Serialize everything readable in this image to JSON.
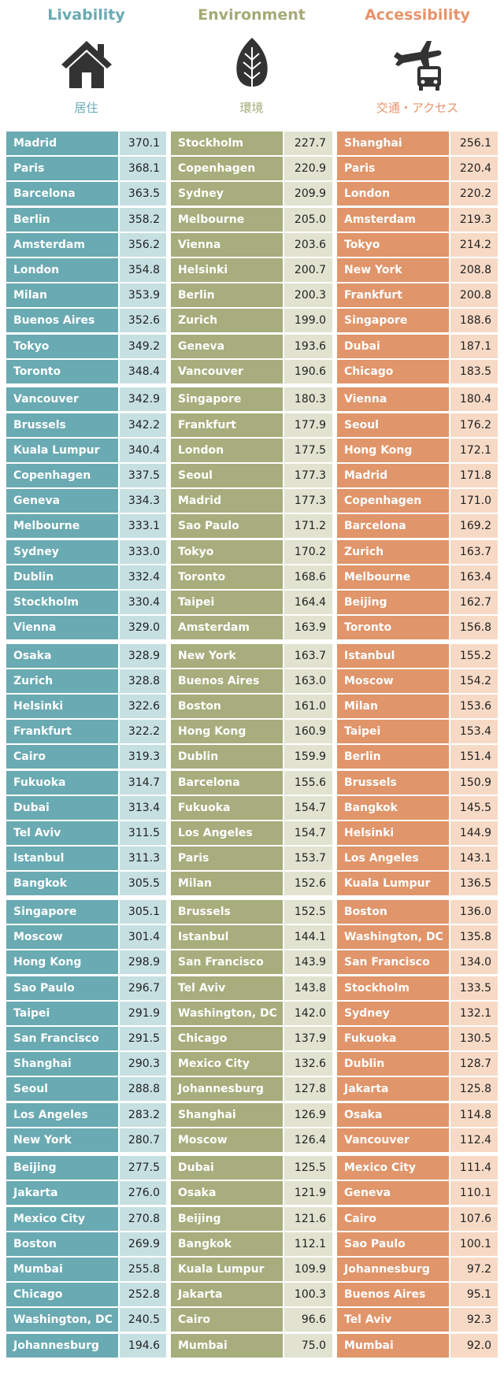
{
  "columns": [
    {
      "title": "Livability",
      "subtitle": "居住",
      "rows": [
        {
          "city": "Madrid",
          "score": "370.1"
        },
        {
          "city": "Paris",
          "score": "368.1"
        },
        {
          "city": "Barcelona",
          "score": "363.5"
        },
        {
          "city": "Berlin",
          "score": "358.2"
        },
        {
          "city": "Amsterdam",
          "score": "356.2"
        },
        {
          "city": "London",
          "score": "354.8"
        },
        {
          "city": "Milan",
          "score": "353.9"
        },
        {
          "city": "Buenos Aires",
          "score": "352.6"
        },
        {
          "city": "Tokyo",
          "score": "349.2"
        },
        {
          "city": "Toronto",
          "score": "348.4"
        },
        {
          "city": "Vancouver",
          "score": "342.9"
        },
        {
          "city": "Brussels",
          "score": "342.2"
        },
        {
          "city": "Kuala Lumpur",
          "score": "340.4"
        },
        {
          "city": "Copenhagen",
          "score": "337.5"
        },
        {
          "city": "Geneva",
          "score": "334.3"
        },
        {
          "city": "Melbourne",
          "score": "333.1"
        },
        {
          "city": "Sydney",
          "score": "333.0"
        },
        {
          "city": "Dublin",
          "score": "332.4"
        },
        {
          "city": "Stockholm",
          "score": "330.4"
        },
        {
          "city": "Vienna",
          "score": "329.0"
        },
        {
          "city": "Osaka",
          "score": "328.9"
        },
        {
          "city": "Zurich",
          "score": "328.8"
        },
        {
          "city": "Helsinki",
          "score": "322.6"
        },
        {
          "city": "Frankfurt",
          "score": "322.2"
        },
        {
          "city": "Cairo",
          "score": "319.3"
        },
        {
          "city": "Fukuoka",
          "score": "314.7"
        },
        {
          "city": "Dubai",
          "score": "313.4"
        },
        {
          "city": "Tel Aviv",
          "score": "311.5"
        },
        {
          "city": "Istanbul",
          "score": "311.3"
        },
        {
          "city": "Bangkok",
          "score": "305.5"
        },
        {
          "city": "Singapore",
          "score": "305.1"
        },
        {
          "city": "Moscow",
          "score": "301.4"
        },
        {
          "city": "Hong Kong",
          "score": "298.9"
        },
        {
          "city": "Sao Paulo",
          "score": "296.7"
        },
        {
          "city": "Taipei",
          "score": "291.9"
        },
        {
          "city": "San Francisco",
          "score": "291.5"
        },
        {
          "city": "Shanghai",
          "score": "290.3"
        },
        {
          "city": "Seoul",
          "score": "288.8"
        },
        {
          "city": "Los Angeles",
          "score": "283.2"
        },
        {
          "city": "New York",
          "score": "280.7"
        },
        {
          "city": "Beijing",
          "score": "277.5"
        },
        {
          "city": "Jakarta",
          "score": "276.0"
        },
        {
          "city": "Mexico City",
          "score": "270.8"
        },
        {
          "city": "Boston",
          "score": "269.9"
        },
        {
          "city": "Mumbai",
          "score": "255.8"
        },
        {
          "city": "Chicago",
          "score": "252.8"
        },
        {
          "city": "Washington, DC",
          "score": "240.5"
        },
        {
          "city": "Johannesburg",
          "score": "194.6"
        }
      ]
    },
    {
      "title": "Environment",
      "subtitle": "環境",
      "rows": [
        {
          "city": "Stockholm",
          "score": "227.7"
        },
        {
          "city": "Copenhagen",
          "score": "220.9"
        },
        {
          "city": "Sydney",
          "score": "209.9"
        },
        {
          "city": "Melbourne",
          "score": "205.0"
        },
        {
          "city": "Vienna",
          "score": "203.6"
        },
        {
          "city": "Helsinki",
          "score": "200.7"
        },
        {
          "city": "Berlin",
          "score": "200.3"
        },
        {
          "city": "Zurich",
          "score": "199.0"
        },
        {
          "city": "Geneva",
          "score": "193.6"
        },
        {
          "city": "Vancouver",
          "score": "190.6"
        },
        {
          "city": "Singapore",
          "score": "180.3"
        },
        {
          "city": "Frankfurt",
          "score": "177.9"
        },
        {
          "city": "London",
          "score": "177.5"
        },
        {
          "city": "Seoul",
          "score": "177.3"
        },
        {
          "city": "Madrid",
          "score": "177.3"
        },
        {
          "city": "Sao Paulo",
          "score": "171.2"
        },
        {
          "city": "Tokyo",
          "score": "170.2"
        },
        {
          "city": "Toronto",
          "score": "168.6"
        },
        {
          "city": "Taipei",
          "score": "164.4"
        },
        {
          "city": "Amsterdam",
          "score": "163.9"
        },
        {
          "city": "New York",
          "score": "163.7"
        },
        {
          "city": "Buenos Aires",
          "score": "163.0"
        },
        {
          "city": "Boston",
          "score": "161.0"
        },
        {
          "city": "Hong Kong",
          "score": "160.9"
        },
        {
          "city": "Dublin",
          "score": "159.9"
        },
        {
          "city": "Barcelona",
          "score": "155.6"
        },
        {
          "city": "Fukuoka",
          "score": "154.7"
        },
        {
          "city": "Los Angeles",
          "score": "154.7"
        },
        {
          "city": "Paris",
          "score": "153.7"
        },
        {
          "city": "Milan",
          "score": "152.6"
        },
        {
          "city": "Brussels",
          "score": "152.5"
        },
        {
          "city": "Istanbul",
          "score": "144.1"
        },
        {
          "city": "San Francisco",
          "score": "143.9"
        },
        {
          "city": "Tel Aviv",
          "score": "143.8"
        },
        {
          "city": "Washington, DC",
          "score": "142.0"
        },
        {
          "city": "Chicago",
          "score": "137.9"
        },
        {
          "city": "Mexico City",
          "score": "132.6"
        },
        {
          "city": "Johannesburg",
          "score": "127.8"
        },
        {
          "city": "Shanghai",
          "score": "126.9"
        },
        {
          "city": "Moscow",
          "score": "126.4"
        },
        {
          "city": "Dubai",
          "score": "125.5"
        },
        {
          "city": "Osaka",
          "score": "121.9"
        },
        {
          "city": "Beijing",
          "score": "121.6"
        },
        {
          "city": "Bangkok",
          "score": "112.1"
        },
        {
          "city": "Kuala Lumpur",
          "score": "109.9"
        },
        {
          "city": "Jakarta",
          "score": "100.3"
        },
        {
          "city": "Cairo",
          "score": "96.6"
        },
        {
          "city": "Mumbai",
          "score": "75.0"
        }
      ]
    },
    {
      "title": "Accessibility",
      "subtitle": "交通・アクセス",
      "rows": [
        {
          "city": "Shanghai",
          "score": "256.1"
        },
        {
          "city": "Paris",
          "score": "220.4"
        },
        {
          "city": "London",
          "score": "220.2"
        },
        {
          "city": "Amsterdam",
          "score": "219.3"
        },
        {
          "city": "Tokyo",
          "score": "214.2"
        },
        {
          "city": "New York",
          "score": "208.8"
        },
        {
          "city": "Frankfurt",
          "score": "200.8"
        },
        {
          "city": "Singapore",
          "score": "188.6"
        },
        {
          "city": "Dubai",
          "score": "187.1"
        },
        {
          "city": "Chicago",
          "score": "183.5"
        },
        {
          "city": "Vienna",
          "score": "180.4"
        },
        {
          "city": "Seoul",
          "score": "176.2"
        },
        {
          "city": "Hong Kong",
          "score": "172.1"
        },
        {
          "city": "Madrid",
          "score": "171.8"
        },
        {
          "city": "Copenhagen",
          "score": "171.0"
        },
        {
          "city": "Barcelona",
          "score": "169.2"
        },
        {
          "city": "Zurich",
          "score": "163.7"
        },
        {
          "city": "Melbourne",
          "score": "163.4"
        },
        {
          "city": "Beijing",
          "score": "162.7"
        },
        {
          "city": "Toronto",
          "score": "156.8"
        },
        {
          "city": "Istanbul",
          "score": "155.2"
        },
        {
          "city": "Moscow",
          "score": "154.2"
        },
        {
          "city": "Milan",
          "score": "153.6"
        },
        {
          "city": "Taipei",
          "score": "153.4"
        },
        {
          "city": "Berlin",
          "score": "151.4"
        },
        {
          "city": "Brussels",
          "score": "150.9"
        },
        {
          "city": "Bangkok",
          "score": "145.5"
        },
        {
          "city": "Helsinki",
          "score": "144.9"
        },
        {
          "city": "Los Angeles",
          "score": "143.1"
        },
        {
          "city": "Kuala Lumpur",
          "score": "136.5"
        },
        {
          "city": "Boston",
          "score": "136.0"
        },
        {
          "city": "Washington, DC",
          "score": "135.8"
        },
        {
          "city": "San Francisco",
          "score": "134.0"
        },
        {
          "city": "Stockholm",
          "score": "133.5"
        },
        {
          "city": "Sydney",
          "score": "132.1"
        },
        {
          "city": "Fukuoka",
          "score": "130.5"
        },
        {
          "city": "Dublin",
          "score": "128.7"
        },
        {
          "city": "Jakarta",
          "score": "125.8"
        },
        {
          "city": "Osaka",
          "score": "114.8"
        },
        {
          "city": "Vancouver",
          "score": "112.4"
        },
        {
          "city": "Mexico City",
          "score": "111.4"
        },
        {
          "city": "Geneva",
          "score": "110.1"
        },
        {
          "city": "Cairo",
          "score": "107.6"
        },
        {
          "city": "Sao Paulo",
          "score": "100.1"
        },
        {
          "city": "Johannesburg",
          "score": "97.2"
        },
        {
          "city": "Buenos Aires",
          "score": "95.1"
        },
        {
          "city": "Tel Aviv",
          "score": "92.3"
        },
        {
          "city": "Mumbai",
          "score": "92.0"
        }
      ]
    }
  ]
}
